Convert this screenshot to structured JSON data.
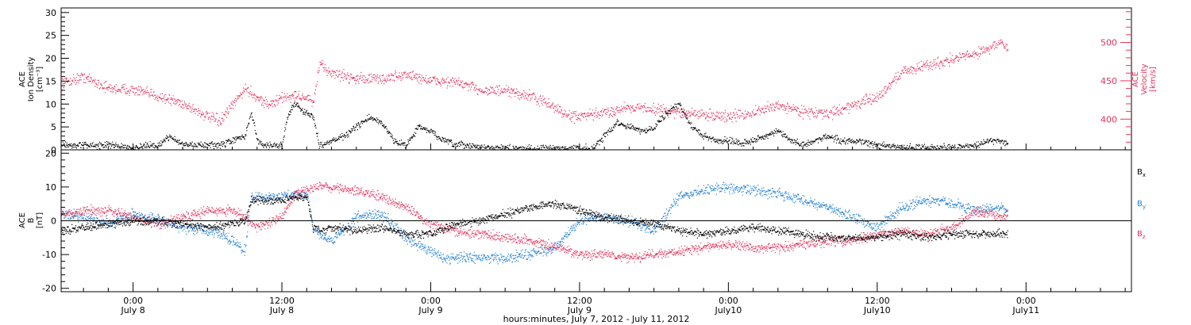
{
  "colors": {
    "black": "#000000",
    "red": "#e8325a",
    "blue": "#1f7fd8"
  },
  "chart_data": [
    {
      "type": "scatter",
      "x_axis": {
        "title": "hours:minutes, July  7, 2012 - July 11, 2012",
        "tick_hours": [
          0,
          12,
          24,
          36,
          48,
          60,
          72
        ],
        "tick_labels_line1": [
          "0:00",
          "12:00",
          "0:00",
          "12:00",
          "0:00",
          "12:00",
          "0:00"
        ],
        "tick_labels_line2": [
          "July 8",
          "July 8",
          "July 9",
          "July 9",
          "July10",
          "July10",
          "July11"
        ],
        "xlim_hours_from_july8": [
          -5.8,
          80.5
        ],
        "data_extent_hours": [
          -5.8,
          70.5
        ]
      },
      "left_axis": {
        "label_line1": "ACE",
        "label_line2": "Ion Density",
        "label_line3": "[cm⁻³]",
        "ylim": [
          0,
          31
        ],
        "ticks": [
          0,
          5,
          10,
          15,
          20,
          25,
          30
        ],
        "tick_labels": [
          "0",
          "5",
          "10",
          "15",
          "20",
          "25",
          "30"
        ]
      },
      "right_axis": {
        "label_line1": "ACE",
        "label_line2": "Velocity",
        "label_line3": "[km/s]",
        "ylim": [
          360,
          545
        ],
        "ticks": [
          400,
          450,
          500
        ],
        "tick_labels": [
          "400",
          "450",
          "500"
        ]
      },
      "series": [
        {
          "color": "#000000",
          "axis": "left",
          "x": [
            -5.8,
            -4,
            -2,
            0,
            2,
            3,
            4,
            5,
            6,
            7,
            8,
            9,
            9.5,
            10,
            10.5,
            11,
            12,
            12.5,
            13,
            13.5,
            14,
            14.5,
            15,
            16,
            17,
            18,
            19,
            20,
            21,
            22,
            23,
            24,
            25,
            26,
            27,
            28,
            30,
            32,
            34,
            36,
            37,
            38,
            39,
            40,
            41,
            42,
            43,
            44,
            45,
            46,
            47,
            48,
            49,
            50,
            51,
            52,
            53,
            54,
            55,
            56,
            57,
            58,
            60,
            62,
            64,
            66,
            68,
            69,
            70,
            70.5
          ],
          "y": [
            1,
            1,
            1,
            0.5,
            1,
            3,
            1,
            1,
            1,
            1,
            2,
            3,
            8,
            2,
            1,
            1,
            1,
            8,
            10,
            9,
            8,
            7,
            1,
            2,
            3,
            5,
            7,
            6,
            2,
            1,
            5,
            4,
            2,
            1,
            1,
            0.5,
            0.3,
            0.3,
            0.3,
            0.3,
            0.3,
            3,
            6,
            5,
            4,
            5,
            8,
            10,
            5,
            3,
            2,
            2,
            1.5,
            2,
            3,
            4,
            2,
            1,
            2,
            3,
            2,
            2,
            1,
            0.5,
            0.5,
            0.5,
            1,
            2,
            2,
            1.5
          ]
        },
        {
          "color": "#e8325a",
          "axis": "right",
          "x": [
            -5.8,
            -4,
            -2,
            0,
            2,
            4,
            6,
            7,
            8,
            9,
            10,
            11,
            12,
            13,
            14,
            14.5,
            15,
            16,
            18,
            20,
            22,
            24,
            26,
            28,
            30,
            32,
            34,
            35,
            36,
            38,
            40,
            42,
            44,
            46,
            48,
            50,
            52,
            54,
            56,
            58,
            60,
            62,
            64,
            66,
            68,
            70,
            70.5
          ],
          "y": [
            447,
            455,
            440,
            438,
            430,
            420,
            403,
            397,
            418,
            440,
            428,
            418,
            428,
            430,
            428,
            420,
            470,
            460,
            453,
            452,
            458,
            450,
            448,
            438,
            436,
            430,
            415,
            404,
            403,
            408,
            416,
            413,
            408,
            406,
            403,
            408,
            418,
            410,
            406,
            418,
            428,
            462,
            470,
            478,
            486,
            500,
            490
          ]
        }
      ]
    },
    {
      "type": "scatter",
      "y_axis": {
        "label_line1": "ACE",
        "label_line2": "B",
        "label_line3": "[nT]",
        "ylim": [
          -21,
          21
        ],
        "ticks": [
          -20,
          -10,
          0,
          10,
          20
        ],
        "tick_labels": [
          "-20",
          "-10",
          "0",
          "10",
          "20"
        ]
      },
      "reference_line_y": 0,
      "series": [
        {
          "name_base": "B",
          "name_sub": "x",
          "color": "#000000",
          "x": [
            -5.8,
            -4,
            -2,
            0,
            2,
            4,
            6,
            8,
            9,
            9.5,
            10,
            12,
            13,
            14,
            14.5,
            15,
            16,
            18,
            20,
            22,
            24,
            26,
            28,
            30,
            32,
            34,
            36,
            38,
            40,
            42,
            44,
            46,
            48,
            50,
            52,
            54,
            56,
            58,
            60,
            62,
            64,
            66,
            68,
            70,
            70.5
          ],
          "y": [
            -3,
            -2,
            -1,
            0,
            0,
            -1,
            -2,
            -1,
            0,
            6,
            6,
            6,
            7,
            7,
            -2,
            -3,
            -2,
            -3,
            -2,
            -4,
            -4,
            -1,
            0,
            2,
            4,
            5,
            3,
            1,
            0,
            -1,
            -3,
            -4,
            -3,
            -2,
            -3,
            -4,
            -5,
            -5,
            -5,
            -4,
            -5,
            -4,
            -4,
            -4,
            -4
          ]
        },
        {
          "name_base": "B",
          "name_sub": "y",
          "color": "#1f7fd8",
          "x": [
            -5.8,
            -4,
            -2,
            0,
            2,
            4,
            6,
            7,
            8,
            9,
            9.5,
            10,
            12,
            13,
            14,
            14.5,
            15,
            16,
            18,
            20,
            22,
            24,
            25,
            26,
            28,
            30,
            32,
            34,
            36,
            38,
            40,
            42,
            44,
            46,
            48,
            50,
            52,
            54,
            56,
            58,
            60,
            62,
            64,
            66,
            68,
            70,
            70.5
          ],
          "y": [
            2,
            1,
            -1,
            2,
            0,
            -2,
            -3,
            -4,
            -6,
            -9,
            7,
            7,
            7,
            8,
            8,
            -2,
            -4,
            -6,
            1,
            2,
            -5,
            -9,
            -11,
            -11,
            -11,
            -11,
            -10,
            -8,
            0,
            1,
            0,
            -3,
            7,
            9,
            10,
            9,
            8,
            6,
            4,
            1,
            -2,
            4,
            6,
            5,
            3,
            4,
            3
          ]
        },
        {
          "name_base": "B",
          "name_sub": "z",
          "color": "#e8325a",
          "x": [
            -5.8,
            -4,
            -2,
            0,
            2,
            4,
            6,
            8,
            9,
            10,
            12,
            13,
            14,
            15,
            16,
            18,
            20,
            22,
            24,
            26,
            28,
            30,
            32,
            34,
            36,
            38,
            40,
            42,
            44,
            46,
            48,
            50,
            52,
            54,
            56,
            58,
            60,
            62,
            64,
            66,
            68,
            70,
            70.5
          ],
          "y": [
            2,
            3,
            3,
            1,
            -1,
            1,
            3,
            3,
            1,
            -2,
            1,
            8,
            9,
            10,
            10,
            9,
            7,
            4,
            -1,
            -3,
            -4,
            -5,
            -6,
            -8,
            -10,
            -10,
            -11,
            -10,
            -9,
            -8,
            -7,
            -8,
            -8,
            -7,
            -6,
            -6,
            -4,
            -3,
            -4,
            -2,
            3,
            1,
            2
          ]
        }
      ]
    }
  ]
}
